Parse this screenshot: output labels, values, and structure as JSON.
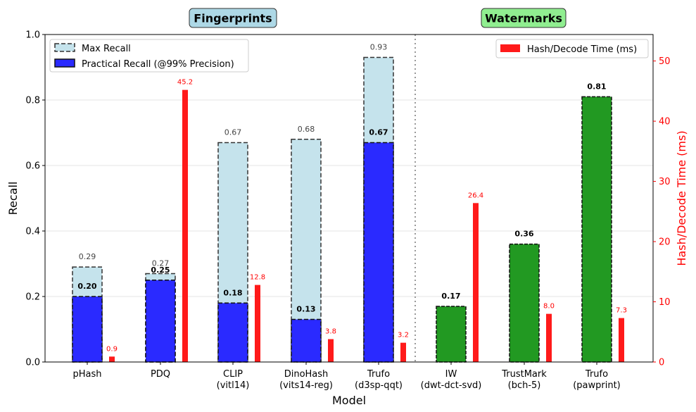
{
  "chart_data": {
    "type": "bar",
    "xlabel": "Model",
    "ylabel": "Recall",
    "y2label": "Hash/Decode Time (ms)",
    "ylim": [
      0,
      1.0
    ],
    "y2lim": [
      0,
      54.4
    ],
    "yticks": [
      "0.0",
      "0.2",
      "0.4",
      "0.6",
      "0.8",
      "1.0"
    ],
    "y2ticks": [
      "0",
      "10",
      "20",
      "30",
      "40",
      "50"
    ],
    "sections": [
      {
        "title": "Fingerprints",
        "color": "#add8e6"
      },
      {
        "title": "Watermarks",
        "color": "#90ee90"
      }
    ],
    "categories": [
      {
        "line1": "pHash",
        "line2": ""
      },
      {
        "line1": "PDQ",
        "line2": ""
      },
      {
        "line1": "CLIP",
        "line2": "(vitl14)"
      },
      {
        "line1": "DinoHash",
        "line2": "(vits14-reg)"
      },
      {
        "line1": "Trufo",
        "line2": "(d3sp-qqt)"
      },
      {
        "line1": "IW",
        "line2": "(dwt-dct-svd)"
      },
      {
        "line1": "TrustMark",
        "line2": "(bch-5)"
      },
      {
        "line1": "Trufo",
        "line2": "(pawprint)"
      }
    ],
    "group": [
      "fingerprint",
      "fingerprint",
      "fingerprint",
      "fingerprint",
      "fingerprint",
      "watermark",
      "watermark",
      "watermark"
    ],
    "max_recall": [
      0.29,
      0.27,
      0.67,
      0.68,
      0.93,
      null,
      null,
      null
    ],
    "max_recall_labels": [
      "0.29",
      "0.27",
      "0.67",
      "0.68",
      "0.93",
      "",
      "",
      ""
    ],
    "practical_recall": [
      0.2,
      0.25,
      0.18,
      0.13,
      0.67,
      0.17,
      0.36,
      0.81
    ],
    "practical_recall_labels": [
      "0.20",
      "0.25",
      "0.18",
      "0.13",
      "0.67",
      "0.17",
      "0.36",
      "0.81"
    ],
    "time_ms": [
      0.9,
      45.2,
      12.8,
      3.8,
      3.2,
      26.4,
      8.0,
      7.3
    ],
    "time_labels": [
      "0.9",
      "45.2",
      "12.8",
      "3.8",
      "3.2",
      "26.4",
      "8.0",
      "7.3"
    ],
    "legend_left": [
      {
        "label": "Max Recall",
        "color": "#add8e6"
      },
      {
        "label": "Practical Recall (@99% Precision)",
        "color": "#0000ff"
      }
    ],
    "legend_right": [
      {
        "label": "Hash/Decode Time (ms)",
        "color": "#ff0000"
      }
    ],
    "colors": {
      "max": "#c5e3ec",
      "practical": "#2a2aff",
      "watermark": "#229922",
      "time": "#ff1a1a"
    },
    "grid": "horizontal"
  }
}
